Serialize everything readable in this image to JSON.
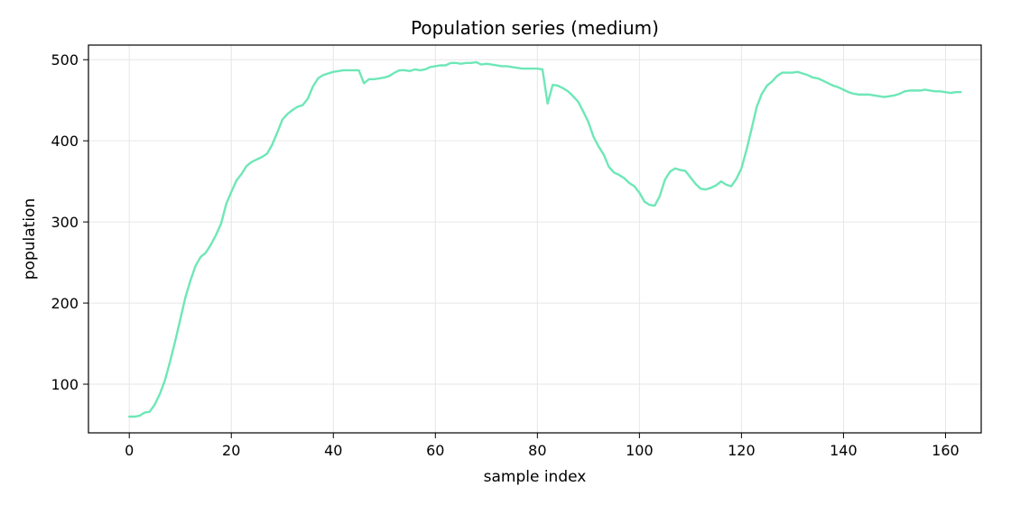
{
  "chart_data": {
    "type": "line",
    "title": "Population series (medium)",
    "xlabel": "sample index",
    "ylabel": "population",
    "xlim": [
      -8,
      167
    ],
    "ylim": [
      40,
      518
    ],
    "xticks": [
      0,
      20,
      40,
      60,
      80,
      100,
      120,
      140,
      160
    ],
    "yticks": [
      100,
      200,
      300,
      400,
      500
    ],
    "grid": true,
    "line_color": "#6ee7b7",
    "series": [
      {
        "x_start": 0,
        "values": [
          60,
          60,
          61,
          65,
          66,
          75,
          88,
          105,
          128,
          153,
          180,
          207,
          228,
          246,
          257,
          262,
          272,
          284,
          298,
          322,
          337,
          351,
          359,
          369,
          374,
          377,
          380,
          384,
          395,
          410,
          426,
          433,
          438,
          442,
          444,
          452,
          467,
          477,
          481,
          483,
          485,
          486,
          487,
          487,
          487,
          487,
          471,
          476,
          476,
          477,
          478,
          480,
          484,
          487,
          487,
          486,
          488,
          487,
          488,
          491,
          492,
          493,
          493,
          496,
          496,
          495,
          496,
          496,
          497,
          494,
          495,
          494,
          493,
          492,
          492,
          491,
          490,
          489,
          489,
          489,
          489,
          488,
          446,
          469,
          468,
          465,
          461,
          455,
          448,
          436,
          423,
          405,
          393,
          383,
          368,
          361,
          358,
          354,
          348,
          344,
          336,
          325,
          321,
          320,
          332,
          352,
          362,
          366,
          364,
          363,
          355,
          347,
          341,
          340,
          342,
          345,
          350,
          346,
          344,
          353,
          366,
          389,
          415,
          442,
          458,
          468,
          473,
          480,
          484,
          484,
          484,
          485,
          483,
          481,
          478,
          477,
          474,
          471,
          468,
          466,
          463,
          460,
          458,
          457,
          457,
          457,
          456,
          455,
          454,
          455,
          456,
          458,
          461,
          462,
          462,
          462,
          463,
          462,
          461,
          461,
          460,
          459,
          460,
          460
        ]
      }
    ]
  }
}
